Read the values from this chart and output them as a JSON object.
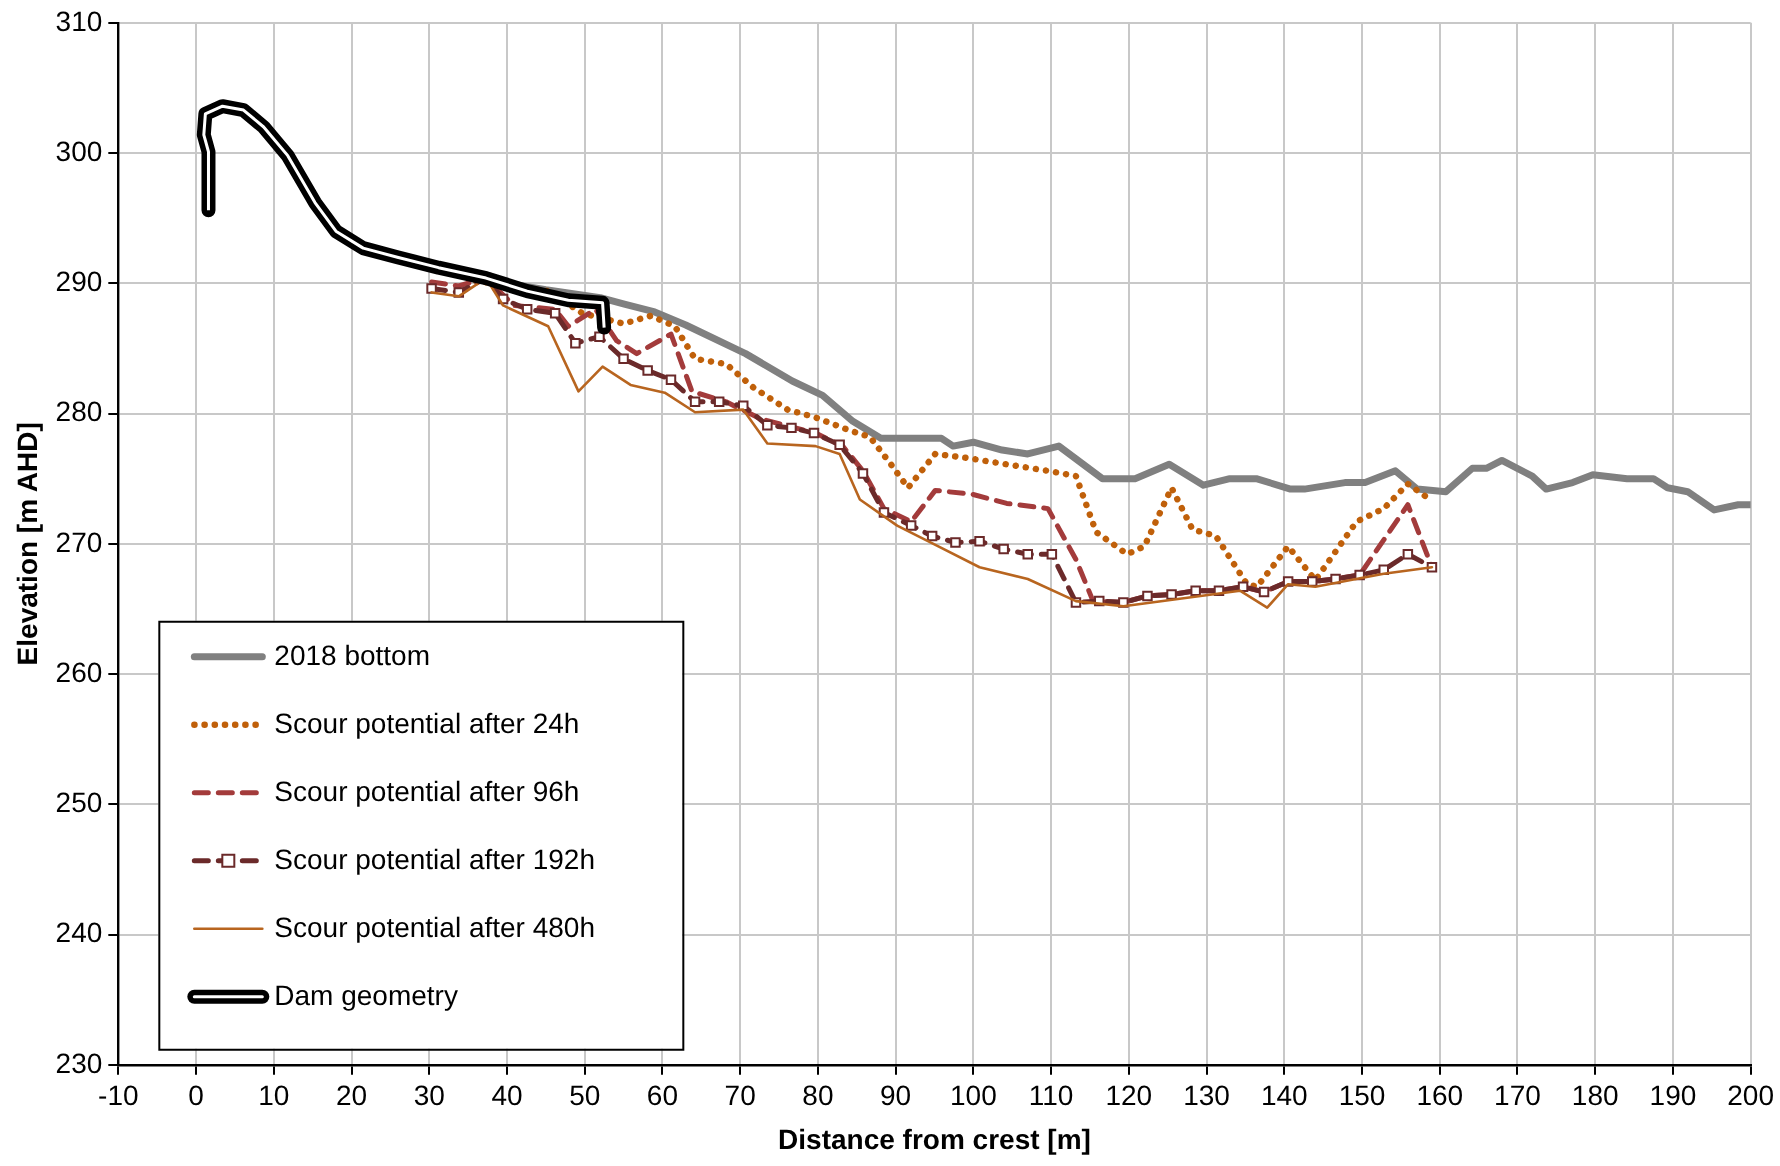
{
  "chart_data": {
    "type": "line",
    "xlabel": "Distance from crest [m]",
    "ylabel": "Elevation [m AHD]",
    "xlim": [
      -10,
      200
    ],
    "xticks": [
      -10,
      0,
      10,
      20,
      30,
      40,
      50,
      60,
      70,
      80,
      90,
      100,
      110,
      120,
      130,
      140,
      150,
      160,
      170,
      180,
      190,
      200
    ],
    "ylim": [
      230,
      310
    ],
    "yticks": [
      230,
      240,
      250,
      260,
      270,
      280,
      290,
      300,
      310
    ],
    "grid": true,
    "legend": "bottom left",
    "series": [
      {
        "name": "2018 bottom",
        "color": "#808080",
        "line_style": "solid",
        "marker": "none",
        "x": [
          36,
          45,
          52,
          55.1,
          59,
          63,
          70.7,
          76.7,
          80.6,
          84.5,
          88.1,
          92.3,
          95.9,
          97.4,
          100,
          103.7,
          107,
          111,
          116.6,
          120.8,
          125.2,
          129.6,
          133,
          136.4,
          140.8,
          142.6,
          147.8,
          150.4,
          154.3,
          157.1,
          160.8,
          164.2,
          166,
          168,
          171.9,
          173.7,
          177.1,
          179.7,
          184.1,
          187.5,
          189.3,
          191.9,
          195.3,
          198.4,
          200
        ],
        "values": [
          290.4,
          289.5,
          288.9,
          288.4,
          287.8,
          286.8,
          284.6,
          282.5,
          281.4,
          279.4,
          278.1,
          278.1,
          278.1,
          277.5,
          277.8,
          277.2,
          276.9,
          277.5,
          275,
          275,
          276.1,
          274.5,
          275,
          275,
          274.2,
          274.2,
          274.7,
          274.7,
          275.6,
          274.2,
          274,
          275.8,
          275.8,
          276.4,
          275.2,
          274.2,
          274.7,
          275.3,
          275,
          275,
          274.3,
          274,
          272.6,
          273,
          273
        ]
      },
      {
        "name": "Scour potential after 24h",
        "color": "#c0600a",
        "line_style": "dotted",
        "marker": "none",
        "x": [
          36,
          42.6,
          45.3,
          49.7,
          55,
          58.5,
          61.6,
          64.2,
          68.2,
          71.7,
          76.1,
          79.7,
          84.1,
          86.7,
          89.4,
          91.6,
          95.1,
          99.1,
          104.3,
          109.6,
          113.2,
          115.8,
          119.8,
          122,
          125.5,
          128.2,
          131.2,
          135.2,
          136.5,
          140.5,
          144,
          149.3,
          152.8,
          155.9,
          159
        ],
        "values": [
          290.2,
          289.6,
          289.4,
          287.7,
          286.9,
          287.5,
          286.7,
          284.2,
          283.8,
          282,
          280.3,
          279.7,
          278.7,
          278.2,
          276.1,
          274.3,
          276.9,
          276.6,
          276.1,
          275.6,
          275.2,
          270.9,
          269.2,
          269.8,
          274.3,
          271.1,
          270.6,
          266.9,
          266.7,
          269.8,
          267.2,
          271.7,
          272.7,
          274.6,
          273.3
        ]
      },
      {
        "name": "Scour potential after 96h",
        "color": "#a33b3b",
        "line_style": "dashed",
        "marker": "none",
        "x": [
          30.3,
          33.8,
          37.3,
          40.9,
          46.2,
          47.9,
          51.4,
          54.1,
          56.7,
          61.1,
          63.8,
          68.2,
          72.6,
          79.7,
          83.2,
          85.8,
          88.5,
          92,
          95.1,
          99.9,
          104.3,
          109.6,
          113.2,
          115.4,
          119.3,
          122.4,
          125.5,
          128.6,
          131.6,
          134.7,
          137.4,
          140.5,
          143.6,
          146.6,
          149.7,
          155.9,
          159
        ],
        "values": [
          290.1,
          289.8,
          290.4,
          288.3,
          288,
          286.7,
          288,
          285.6,
          284.6,
          286.1,
          281.7,
          280.9,
          279.6,
          278.5,
          277.5,
          275.6,
          272.7,
          271.7,
          274.1,
          273.8,
          273.1,
          272.7,
          268.8,
          265.6,
          265.5,
          266,
          266.1,
          266.4,
          266.4,
          266.7,
          266.3,
          267.1,
          267.1,
          267.3,
          267.6,
          273,
          268.2
        ]
      },
      {
        "name": "Scour potential after 192h",
        "color": "#6b2a2a",
        "line_style": "dashed",
        "marker": "square",
        "x": [
          30.3,
          33.8,
          37.3,
          39.5,
          42.6,
          46.2,
          48.8,
          51.9,
          55,
          58.1,
          61.1,
          64.2,
          67.3,
          70.4,
          73.5,
          76.6,
          79.5,
          82.8,
          85.8,
          88.5,
          92,
          94.7,
          97.7,
          100.8,
          103.9,
          107,
          110.1,
          113.2,
          116.2,
          119.3,
          122.4,
          125.5,
          128.6,
          131.6,
          134.7,
          137.4,
          140.5,
          143.6,
          146.6,
          149.7,
          152.8,
          155.9,
          159
        ],
        "values": [
          289.6,
          289.3,
          290.4,
          288.8,
          288,
          287.7,
          285.4,
          285.9,
          284.2,
          283.3,
          282.6,
          280.9,
          280.9,
          280.6,
          279.1,
          278.9,
          278.5,
          277.6,
          275.4,
          272.4,
          271.4,
          270.6,
          270.1,
          270.2,
          269.6,
          269.2,
          269.2,
          265.5,
          265.6,
          265.5,
          266,
          266.1,
          266.4,
          266.4,
          266.7,
          266.3,
          267.1,
          267.1,
          267.3,
          267.6,
          268,
          269.2,
          268.2
        ]
      },
      {
        "name": "Scour potential after 480h",
        "color": "#b8651f",
        "line_style": "solid",
        "marker": "none",
        "x": [
          30.3,
          33.8,
          37.3,
          39.5,
          45.3,
          49.2,
          52.3,
          55.9,
          60.3,
          64.2,
          70.4,
          73.5,
          79.7,
          82.8,
          85.4,
          90.2,
          95.5,
          100.8,
          107,
          113.2,
          119.3,
          134.3,
          137.8,
          140.5,
          144,
          152.8,
          159
        ],
        "values": [
          289.3,
          289,
          290.4,
          288.3,
          286.7,
          281.7,
          283.6,
          282.2,
          281.6,
          280.1,
          280.3,
          277.7,
          277.5,
          276.9,
          273.4,
          271.4,
          269.8,
          268.2,
          267.3,
          265.6,
          265.2,
          266.4,
          265.1,
          266.9,
          266.7,
          267.7,
          268.2
        ]
      },
      {
        "name": "Dam geometry",
        "color": "#000000",
        "line_style": "solid",
        "marker": "none",
        "x": [
          1.6,
          1.6,
          1,
          1.2,
          3.4,
          6.1,
          8.7,
          11.8,
          15.3,
          18,
          21.5,
          25.9,
          31.2,
          37.3,
          42.6,
          47.9,
          52.3,
          52.5
        ],
        "values": [
          295.6,
          300.1,
          301.4,
          303,
          303.6,
          303.3,
          302,
          299.8,
          296.2,
          294,
          292.7,
          292,
          291.2,
          290.4,
          289.4,
          288.7,
          288.5,
          286.6
        ]
      }
    ]
  }
}
